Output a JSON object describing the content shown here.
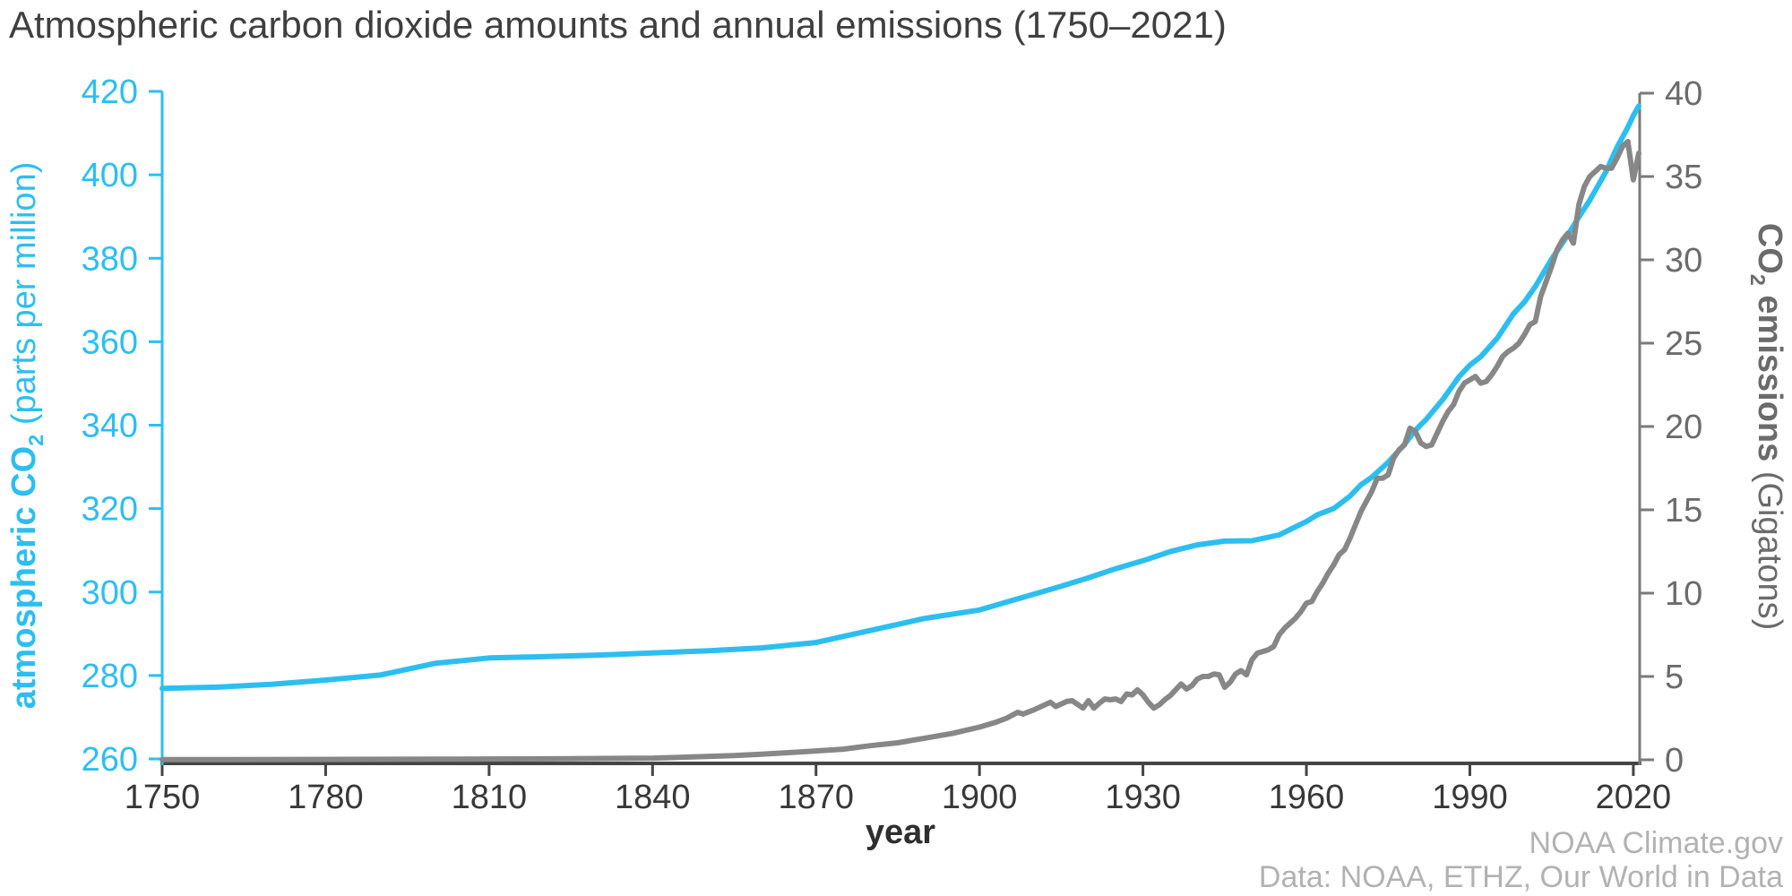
{
  "title": "Atmospheric carbon dioxide amounts and annual emissions (1750–2021)",
  "attribution": {
    "line1": "NOAA Climate.gov",
    "line2": "Data: NOAA, ETHZ, Our World in Data"
  },
  "colors": {
    "accent_blue": "#2dbef0",
    "series_gray": "#878787",
    "right_axis_gray": "#6b6b6b",
    "right_axis_line": "#7a7a7a",
    "x_axis_line": "#444444",
    "x_label_dark": "#383838",
    "title_dark": "#3f3f3f",
    "attribution_gray": "#b2b2b2"
  },
  "x_axis": {
    "label": "year",
    "min": 1750,
    "max": 2021,
    "ticks": [
      1750,
      1780,
      1810,
      1840,
      1870,
      1900,
      1930,
      1960,
      1990,
      2020
    ]
  },
  "left_axis": {
    "title_bold": "atmospheric CO",
    "title_sub": "2",
    "title_rest": " (parts per million)",
    "min": 260,
    "max": 420,
    "ticks": [
      260,
      280,
      300,
      320,
      340,
      360,
      380,
      400,
      420
    ]
  },
  "right_axis": {
    "title_bold": "CO",
    "title_sub": "2",
    "title_bold_rest": " emissions",
    "title_rest": " (Gigatons)",
    "min": 0,
    "max": 40,
    "ticks": [
      0,
      5,
      10,
      15,
      20,
      25,
      30,
      35,
      40
    ]
  },
  "chart_data": {
    "type": "line",
    "title": "Atmospheric carbon dioxide amounts and annual emissions (1750–2021)",
    "xlabel": "year",
    "x_range": [
      1750,
      2021
    ],
    "left_ylabel": "atmospheric CO2 (parts per million)",
    "left_ylim": [
      260,
      420
    ],
    "right_ylabel": "CO2 emissions (Gigatons)",
    "right_ylim": [
      0,
      40
    ],
    "grid": false,
    "legend": "none",
    "series": [
      {
        "name": "atmospheric CO2 (parts per million)",
        "axis": "left",
        "color": "#2dbef0",
        "points": [
          [
            1750,
            276.9
          ],
          [
            1760,
            277.2
          ],
          [
            1770,
            277.9
          ],
          [
            1780,
            278.9
          ],
          [
            1790,
            280.1
          ],
          [
            1800,
            282.9
          ],
          [
            1810,
            284.2
          ],
          [
            1820,
            284.5
          ],
          [
            1830,
            284.9
          ],
          [
            1840,
            285.4
          ],
          [
            1850,
            285.9
          ],
          [
            1860,
            286.6
          ],
          [
            1870,
            287.9
          ],
          [
            1880,
            290.8
          ],
          [
            1890,
            293.7
          ],
          [
            1900,
            295.7
          ],
          [
            1905,
            297.6
          ],
          [
            1910,
            299.5
          ],
          [
            1915,
            301.4
          ],
          [
            1920,
            303.4
          ],
          [
            1925,
            305.6
          ],
          [
            1930,
            307.5
          ],
          [
            1935,
            309.7
          ],
          [
            1940,
            311.3
          ],
          [
            1945,
            312.2
          ],
          [
            1950,
            312.3
          ],
          [
            1955,
            313.7
          ],
          [
            1960,
            316.9
          ],
          [
            1962,
            318.5
          ],
          [
            1965,
            320.0
          ],
          [
            1968,
            323.0
          ],
          [
            1970,
            325.7
          ],
          [
            1972,
            327.5
          ],
          [
            1975,
            331.1
          ],
          [
            1978,
            335.4
          ],
          [
            1980,
            338.8
          ],
          [
            1982,
            341.4
          ],
          [
            1985,
            346.1
          ],
          [
            1988,
            351.6
          ],
          [
            1990,
            354.4
          ],
          [
            1992,
            356.4
          ],
          [
            1995,
            360.8
          ],
          [
            1998,
            366.7
          ],
          [
            2000,
            369.5
          ],
          [
            2002,
            373.2
          ],
          [
            2005,
            379.8
          ],
          [
            2008,
            385.6
          ],
          [
            2010,
            389.9
          ],
          [
            2012,
            393.9
          ],
          [
            2015,
            400.8
          ],
          [
            2017,
            406.6
          ],
          [
            2019,
            411.4
          ],
          [
            2020,
            414.2
          ],
          [
            2021,
            416.5
          ]
        ]
      },
      {
        "name": "CO2 emissions (Gigatons)",
        "axis": "right",
        "color": "#878787",
        "points": [
          [
            1750,
            0.01
          ],
          [
            1775,
            0.02
          ],
          [
            1800,
            0.04
          ],
          [
            1820,
            0.06
          ],
          [
            1840,
            0.1
          ],
          [
            1850,
            0.2
          ],
          [
            1855,
            0.26
          ],
          [
            1860,
            0.34
          ],
          [
            1865,
            0.43
          ],
          [
            1870,
            0.53
          ],
          [
            1875,
            0.64
          ],
          [
            1880,
            0.85
          ],
          [
            1885,
            1.02
          ],
          [
            1890,
            1.3
          ],
          [
            1895,
            1.58
          ],
          [
            1900,
            1.96
          ],
          [
            1903,
            2.25
          ],
          [
            1905,
            2.5
          ],
          [
            1907,
            2.85
          ],
          [
            1908,
            2.75
          ],
          [
            1910,
            3.0
          ],
          [
            1913,
            3.45
          ],
          [
            1914,
            3.2
          ],
          [
            1916,
            3.5
          ],
          [
            1917,
            3.55
          ],
          [
            1919,
            3.1
          ],
          [
            1920,
            3.55
          ],
          [
            1921,
            3.1
          ],
          [
            1922,
            3.4
          ],
          [
            1923,
            3.65
          ],
          [
            1924,
            3.6
          ],
          [
            1925,
            3.65
          ],
          [
            1926,
            3.5
          ],
          [
            1927,
            3.95
          ],
          [
            1928,
            3.9
          ],
          [
            1929,
            4.2
          ],
          [
            1930,
            3.9
          ],
          [
            1931,
            3.45
          ],
          [
            1932,
            3.1
          ],
          [
            1933,
            3.3
          ],
          [
            1934,
            3.6
          ],
          [
            1935,
            3.85
          ],
          [
            1936,
            4.2
          ],
          [
            1937,
            4.55
          ],
          [
            1938,
            4.25
          ],
          [
            1939,
            4.45
          ],
          [
            1940,
            4.85
          ],
          [
            1941,
            5.0
          ],
          [
            1942,
            5.0
          ],
          [
            1943,
            5.15
          ],
          [
            1944,
            5.1
          ],
          [
            1945,
            4.35
          ],
          [
            1946,
            4.65
          ],
          [
            1947,
            5.15
          ],
          [
            1948,
            5.35
          ],
          [
            1949,
            5.1
          ],
          [
            1950,
            6.0
          ],
          [
            1951,
            6.4
          ],
          [
            1952,
            6.5
          ],
          [
            1953,
            6.6
          ],
          [
            1954,
            6.8
          ],
          [
            1955,
            7.5
          ],
          [
            1956,
            7.9
          ],
          [
            1957,
            8.2
          ],
          [
            1958,
            8.5
          ],
          [
            1959,
            8.9
          ],
          [
            1960,
            9.4
          ],
          [
            1961,
            9.5
          ],
          [
            1962,
            10.1
          ],
          [
            1963,
            10.6
          ],
          [
            1964,
            11.2
          ],
          [
            1965,
            11.7
          ],
          [
            1966,
            12.3
          ],
          [
            1967,
            12.6
          ],
          [
            1968,
            13.3
          ],
          [
            1969,
            14.1
          ],
          [
            1970,
            14.9
          ],
          [
            1971,
            15.5
          ],
          [
            1972,
            16.1
          ],
          [
            1973,
            16.9
          ],
          [
            1974,
            16.9
          ],
          [
            1975,
            17.1
          ],
          [
            1976,
            18.1
          ],
          [
            1977,
            18.6
          ],
          [
            1978,
            18.9
          ],
          [
            1979,
            19.9
          ],
          [
            1980,
            19.7
          ],
          [
            1981,
            19.0
          ],
          [
            1982,
            18.8
          ],
          [
            1983,
            18.9
          ],
          [
            1984,
            19.6
          ],
          [
            1985,
            20.3
          ],
          [
            1986,
            20.9
          ],
          [
            1987,
            21.3
          ],
          [
            1988,
            22.1
          ],
          [
            1989,
            22.6
          ],
          [
            1990,
            22.8
          ],
          [
            1991,
            23.0
          ],
          [
            1992,
            22.6
          ],
          [
            1993,
            22.7
          ],
          [
            1994,
            23.1
          ],
          [
            1995,
            23.6
          ],
          [
            1996,
            24.2
          ],
          [
            1997,
            24.5
          ],
          [
            1998,
            24.7
          ],
          [
            1999,
            25.0
          ],
          [
            2000,
            25.5
          ],
          [
            2001,
            26.1
          ],
          [
            2002,
            26.3
          ],
          [
            2003,
            27.8
          ],
          [
            2004,
            28.7
          ],
          [
            2005,
            29.6
          ],
          [
            2006,
            30.6
          ],
          [
            2007,
            31.2
          ],
          [
            2008,
            31.6
          ],
          [
            2009,
            31.0
          ],
          [
            2010,
            33.3
          ],
          [
            2011,
            34.4
          ],
          [
            2012,
            35.0
          ],
          [
            2013,
            35.3
          ],
          [
            2014,
            35.6
          ],
          [
            2015,
            35.5
          ],
          [
            2016,
            35.5
          ],
          [
            2017,
            36.1
          ],
          [
            2018,
            36.8
          ],
          [
            2019,
            37.1
          ],
          [
            2020,
            34.8
          ],
          [
            2021,
            36.4
          ]
        ]
      }
    ]
  }
}
